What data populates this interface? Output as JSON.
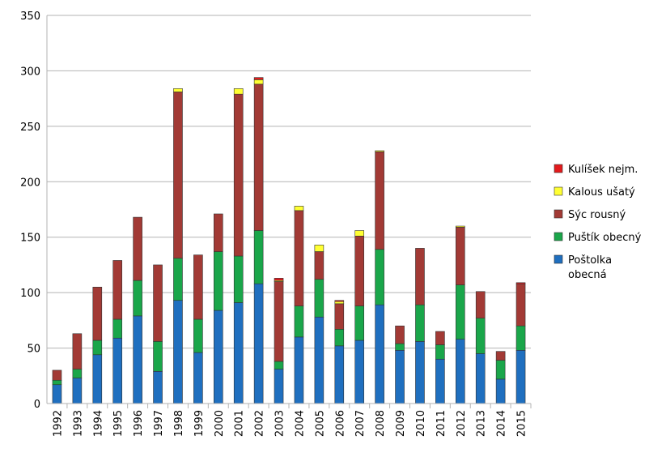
{
  "chart_data": {
    "type": "bar",
    "stacked": true,
    "title": "",
    "xlabel": "",
    "ylabel": "",
    "ylim": [
      0,
      350
    ],
    "yticks": [
      0,
      50,
      100,
      150,
      200,
      250,
      300,
      350
    ],
    "grid": true,
    "legend_position": "right",
    "categories": [
      "1992",
      "1993",
      "1994",
      "1995",
      "1996",
      "1997",
      "1998",
      "1999",
      "2000",
      "2001",
      "2002",
      "2003",
      "2004",
      "2005",
      "2006",
      "2007",
      "2008",
      "2009",
      "2010",
      "2011",
      "2012",
      "2013",
      "2014",
      "2015"
    ],
    "series": [
      {
        "name": "Poštolka obecná",
        "color": "#1f6fbf",
        "values": [
          17,
          23,
          44,
          59,
          79,
          29,
          93,
          46,
          84,
          91,
          108,
          31,
          60,
          78,
          52,
          57,
          89,
          48,
          56,
          40,
          58,
          45,
          22,
          48
        ]
      },
      {
        "name": "Puštík obecný",
        "color": "#1aa64a",
        "values": [
          4,
          8,
          13,
          17,
          32,
          27,
          38,
          30,
          53,
          42,
          48,
          7,
          28,
          34,
          15,
          31,
          50,
          6,
          33,
          13,
          49,
          32,
          17,
          22
        ]
      },
      {
        "name": "Sýc rousný",
        "color": "#a23a35",
        "values": [
          9,
          32,
          48,
          53,
          57,
          69,
          150,
          58,
          34,
          146,
          132,
          72,
          86,
          25,
          23,
          63,
          88,
          16,
          51,
          12,
          52,
          24,
          8,
          38
        ]
      },
      {
        "name": "Kalous ušatý",
        "color": "#ffff33",
        "values": [
          0,
          0,
          0,
          0,
          0,
          0,
          3,
          0,
          0,
          5,
          4,
          1,
          4,
          6,
          2,
          5,
          1,
          0,
          0,
          0,
          1,
          0,
          0,
          0
        ]
      },
      {
        "name": "Kulíšek nejm.",
        "color": "#e31a1c",
        "values": [
          0,
          0,
          0,
          0,
          0,
          0,
          0,
          0,
          0,
          0,
          2,
          2,
          0,
          0,
          1,
          0,
          0,
          0,
          0,
          0,
          0,
          0,
          0,
          1
        ]
      }
    ],
    "legend_order": [
      {
        "label": "Kulíšek nejm.",
        "color": "#e31a1c"
      },
      {
        "label": "Kalous ušatý",
        "color": "#ffff33"
      },
      {
        "label": "Sýc rousný",
        "color": "#a23a35"
      },
      {
        "label": "Puštík obecný",
        "color": "#1aa64a"
      },
      {
        "label": "Poštolka",
        "label_line2": "obecná",
        "color": "#1f6fbf"
      }
    ]
  }
}
